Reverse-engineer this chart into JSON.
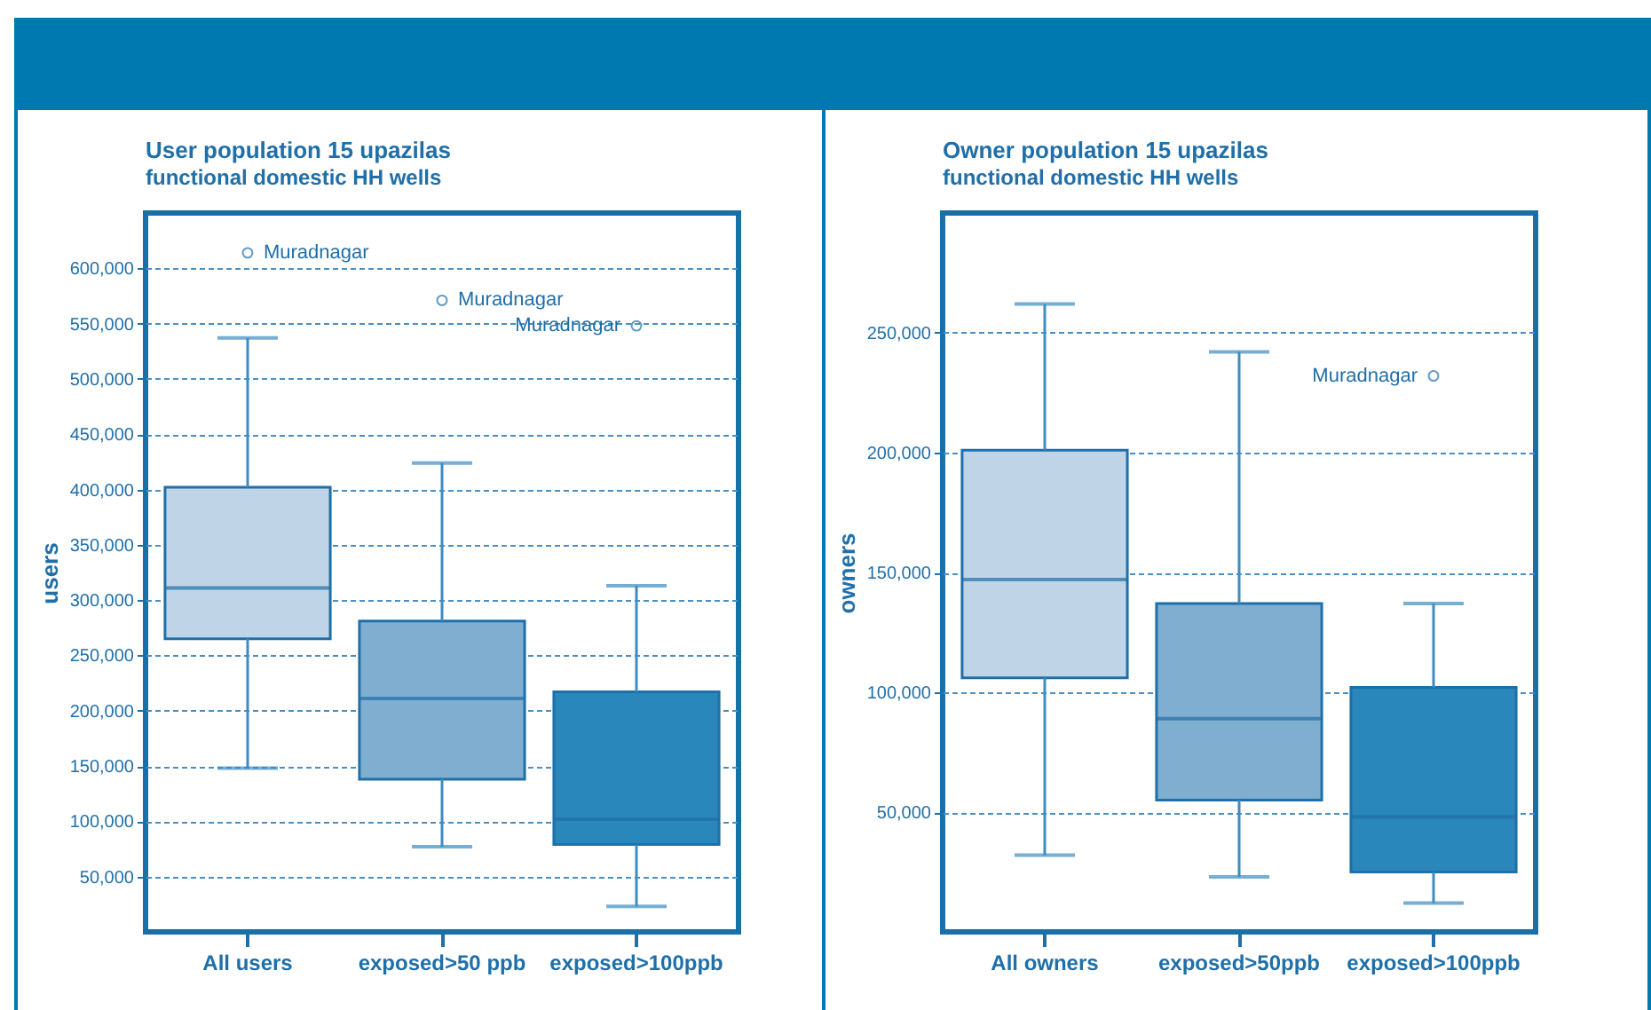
{
  "chart_data": [
    {
      "type": "box",
      "title": "User population 15 upazilas",
      "subtitle": "functional domestic HH wells",
      "ylabel": "users",
      "categories": [
        "All users",
        "exposed>50 ppb",
        "exposed>100ppb"
      ],
      "boxes": [
        {
          "low": 148000,
          "q1": 265000,
          "median": 311000,
          "q3": 402000,
          "high": 537000,
          "outliers": [
            614000
          ]
        },
        {
          "low": 77000,
          "q1": 138000,
          "median": 211000,
          "q3": 281000,
          "high": 424000,
          "outliers": [
            571000
          ]
        },
        {
          "low": 23000,
          "q1": 79000,
          "median": 102000,
          "q3": 217000,
          "high": 313000,
          "outliers": [
            548000
          ]
        }
      ],
      "colors": [
        "#c0d4e8",
        "#80aed0",
        "#2a87bb"
      ],
      "ylim": [
        0,
        650000
      ],
      "yticks": [
        {
          "value": 50000,
          "label": "50,000"
        },
        {
          "value": 100000,
          "label": "100,000"
        },
        {
          "value": 150000,
          "label": "150,000"
        },
        {
          "value": 200000,
          "label": "200,000"
        },
        {
          "value": 250000,
          "label": "250,000"
        },
        {
          "value": 300000,
          "label": "300,000"
        },
        {
          "value": 350000,
          "label": "350,000"
        },
        {
          "value": 400000,
          "label": "400,000"
        },
        {
          "value": 450000,
          "label": "450,000"
        },
        {
          "value": 500000,
          "label": "500,000"
        },
        {
          "value": 550000,
          "label": "550,000"
        },
        {
          "value": 600000,
          "label": "600,000"
        }
      ],
      "grid": "y",
      "annotations": [
        "Muradnagar",
        "Muradnagar",
        "Muradnagar"
      ]
    },
    {
      "type": "box",
      "title": "Owner population 15 upazilas",
      "subtitle": "functional domestic HH wells",
      "ylabel": "owners",
      "categories": [
        "All owners",
        "exposed>50ppb",
        "exposed>100ppb"
      ],
      "boxes": [
        {
          "low": 32000,
          "q1": 106000,
          "median": 147000,
          "q3": 201000,
          "high": 262000
        },
        {
          "low": 23000,
          "q1": 55000,
          "median": 89000,
          "q3": 137000,
          "high": 242000
        },
        {
          "low": 12000,
          "q1": 25000,
          "median": 48000,
          "q3": 102000,
          "high": 137000,
          "outliers": [
            232000
          ]
        }
      ],
      "colors": [
        "#c0d4e8",
        "#80aed0",
        "#2a87bb"
      ],
      "ylim": [
        0,
        300000
      ],
      "yticks": [
        {
          "value": 50000,
          "label": "50,000"
        },
        {
          "value": 100000,
          "label": "100,000"
        },
        {
          "value": 150000,
          "label": "150,000"
        },
        {
          "value": 200000,
          "label": "200,000"
        },
        {
          "value": 250000,
          "label": "250,000"
        }
      ],
      "grid": "y",
      "annotations": [
        "Muradnagar"
      ]
    }
  ]
}
